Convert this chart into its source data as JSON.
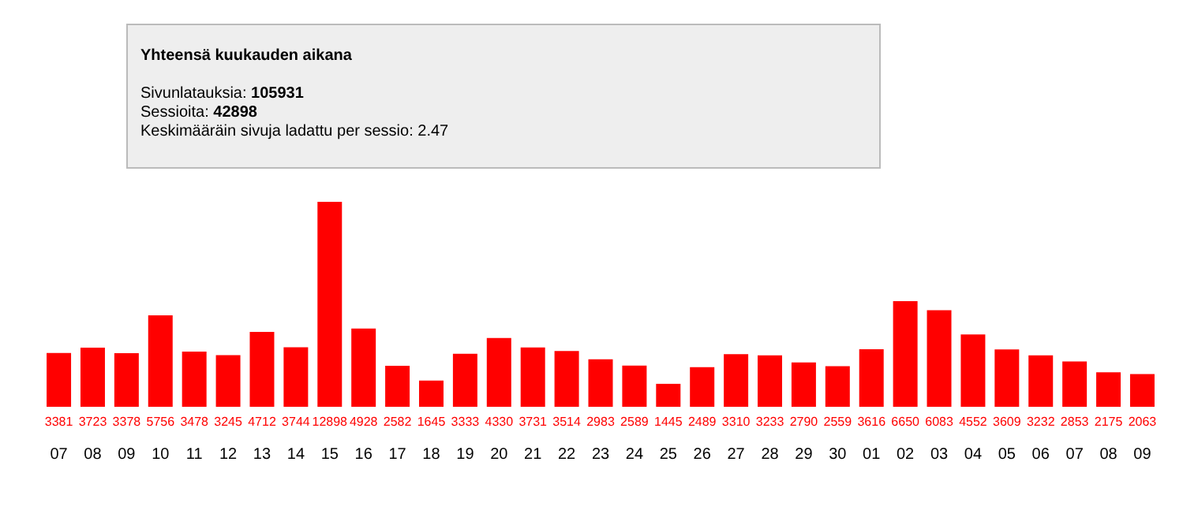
{
  "chart_data": {
    "type": "bar",
    "title": "Yhteensä kuukauden aikana",
    "annotations": [
      "Sivunlatauksia: 105931",
      "Sessioita: 42898",
      "Keskimääräin sivuja ladattu per sessio: 2.47"
    ],
    "categories": [
      "07",
      "08",
      "09",
      "10",
      "11",
      "12",
      "13",
      "14",
      "15",
      "16",
      "17",
      "18",
      "19",
      "20",
      "21",
      "22",
      "23",
      "24",
      "25",
      "26",
      "27",
      "28",
      "29",
      "30",
      "01",
      "02",
      "03",
      "04",
      "05",
      "06",
      "07",
      "08",
      "09"
    ],
    "values": [
      3381,
      3723,
      3378,
      5756,
      3478,
      3245,
      4712,
      3744,
      12898,
      4928,
      2582,
      1645,
      3333,
      4330,
      3731,
      3514,
      2983,
      2589,
      1445,
      2489,
      3310,
      3233,
      2790,
      2559,
      3616,
      6650,
      6083,
      4552,
      3609,
      3232,
      2853,
      2175,
      2063
    ],
    "color": "#ff0000",
    "ylim": [
      0,
      12898
    ],
    "tick_labels": "x",
    "data_labels": true,
    "grid": false,
    "legend": false
  }
}
